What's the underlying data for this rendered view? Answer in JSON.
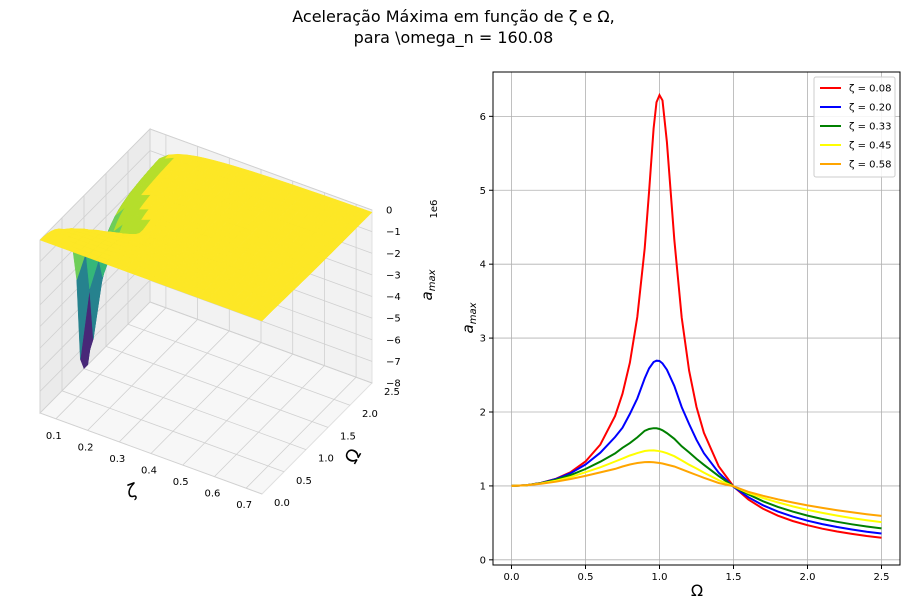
{
  "figure": {
    "title_line1": "Aceleração Máxima em função de ζ e Ω,",
    "title_line2": "para \\omega_n = 160.08"
  },
  "chart_data": [
    {
      "type": "surface3d",
      "xlabel": "ζ",
      "ylabel": "Ω",
      "zlabel": "a_max",
      "z_offset_label": "1e6",
      "xticks": [
        "0.1",
        "0.2",
        "0.3",
        "0.4",
        "0.5",
        "0.6",
        "0.7"
      ],
      "yticks": [
        "0.0",
        "0.5",
        "1.0",
        "1.5",
        "2.0",
        "2.5"
      ],
      "zticks": [
        "0",
        "−1",
        "−2",
        "−3",
        "−4",
        "−5",
        "−6",
        "−7",
        "−8"
      ],
      "xlim": [
        0.05,
        0.75
      ],
      "ylim": [
        0.0,
        2.5
      ],
      "zlim": [
        -8,
        0
      ],
      "colormap": "viridis",
      "grid": true
    },
    {
      "type": "line",
      "xlabel": "Ω",
      "ylabel": "a_max",
      "xlim": [
        -0.125,
        2.625
      ],
      "ylim": [
        -0.07,
        6.6
      ],
      "xticks": [
        "0.0",
        "0.5",
        "1.0",
        "1.5",
        "2.0",
        "2.5"
      ],
      "yticks": [
        "0",
        "1",
        "2",
        "3",
        "4",
        "5",
        "6"
      ],
      "grid": true,
      "legend_position": "top-right",
      "x": [
        0.0,
        0.1,
        0.2,
        0.3,
        0.4,
        0.5,
        0.6,
        0.7,
        0.75,
        0.8,
        0.85,
        0.9,
        0.93,
        0.96,
        0.98,
        1.0,
        1.02,
        1.05,
        1.1,
        1.15,
        1.2,
        1.25,
        1.3,
        1.4,
        1.5,
        1.6,
        1.7,
        1.8,
        1.9,
        2.0,
        2.1,
        2.2,
        2.3,
        2.4,
        2.5
      ],
      "series": [
        {
          "name": "ζ = 0.08",
          "color": "#ff0000",
          "values": [
            1.0,
            1.01,
            1.041,
            1.096,
            1.187,
            1.33,
            1.559,
            1.946,
            2.247,
            2.668,
            3.285,
            4.214,
            4.986,
            5.836,
            6.192,
            6.288,
            6.216,
            5.653,
            4.334,
            3.279,
            2.56,
            2.067,
            1.718,
            1.265,
            0.994,
            0.816,
            0.69,
            0.597,
            0.525,
            0.468,
            0.421,
            0.383,
            0.351,
            0.323,
            0.299
          ]
        },
        {
          "name": "ζ = 0.20",
          "color": "#0000ff",
          "values": [
            1.0,
            1.01,
            1.04,
            1.093,
            1.174,
            1.29,
            1.45,
            1.662,
            1.787,
            1.974,
            2.182,
            2.455,
            2.59,
            2.676,
            2.694,
            2.69,
            2.658,
            2.572,
            2.353,
            2.066,
            1.838,
            1.624,
            1.443,
            1.179,
            0.988,
            0.847,
            0.738,
            0.653,
            0.585,
            0.529,
            0.483,
            0.444,
            0.41,
            0.381,
            0.356
          ]
        },
        {
          "name": "ζ = 0.33",
          "color": "#008000",
          "values": [
            1.0,
            1.009,
            1.038,
            1.084,
            1.148,
            1.229,
            1.327,
            1.44,
            1.515,
            1.579,
            1.656,
            1.746,
            1.77,
            1.781,
            1.78,
            1.77,
            1.753,
            1.715,
            1.637,
            1.536,
            1.453,
            1.365,
            1.286,
            1.133,
            0.993,
            0.886,
            0.792,
            0.716,
            0.652,
            0.599,
            0.553,
            0.515,
            0.481,
            0.451,
            0.425
          ]
        },
        {
          "name": "ζ = 0.45",
          "color": "#ffff00",
          "values": [
            1.0,
            1.009,
            1.034,
            1.071,
            1.121,
            1.185,
            1.252,
            1.33,
            1.369,
            1.411,
            1.444,
            1.472,
            1.479,
            1.48,
            1.477,
            1.47,
            1.462,
            1.443,
            1.402,
            1.345,
            1.287,
            1.235,
            1.18,
            1.077,
            0.995,
            0.905,
            0.837,
            0.777,
            0.723,
            0.676,
            0.635,
            0.598,
            0.565,
            0.536,
            0.51
          ]
        },
        {
          "name": "ζ = 0.58",
          "color": "#ffa500",
          "values": [
            1.0,
            1.008,
            1.028,
            1.057,
            1.094,
            1.136,
            1.183,
            1.23,
            1.262,
            1.29,
            1.31,
            1.322,
            1.323,
            1.32,
            1.316,
            1.31,
            1.303,
            1.289,
            1.262,
            1.225,
            1.186,
            1.148,
            1.11,
            1.04,
            0.995,
            0.921,
            0.866,
            0.818,
            0.776,
            0.737,
            0.702,
            0.671,
            0.643,
            0.617,
            0.594
          ]
        }
      ]
    }
  ]
}
